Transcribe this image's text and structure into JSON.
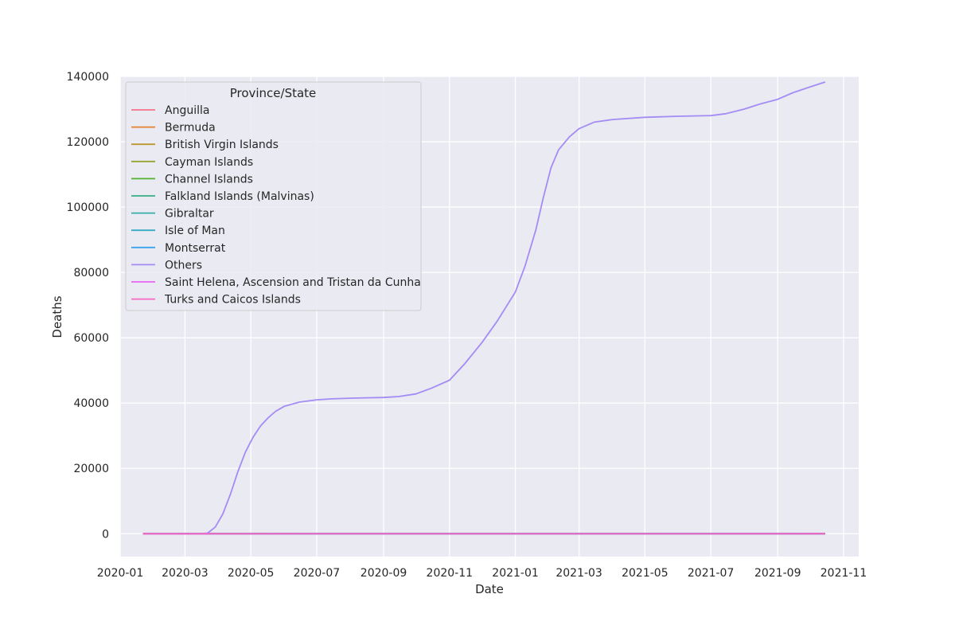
{
  "chart_data": {
    "type": "line",
    "title": "",
    "xlabel": "Date",
    "ylabel": "Deaths",
    "xlim": [
      "2020-01-01",
      "2021-11-15"
    ],
    "ylim": [
      -7000,
      140000
    ],
    "x_ticks": [
      "2020-01",
      "2020-03",
      "2020-05",
      "2020-07",
      "2020-09",
      "2020-11",
      "2021-01",
      "2021-03",
      "2021-05",
      "2021-07",
      "2021-09",
      "2021-11"
    ],
    "y_ticks": [
      0,
      20000,
      40000,
      60000,
      80000,
      100000,
      120000,
      140000
    ],
    "grid": true,
    "background": "#eaeaf2",
    "legend": {
      "title": "Province/State",
      "placement": "top-left"
    },
    "series": [
      {
        "name": "Anguilla",
        "color": "#f77189",
        "x": [
          "2020-01-22",
          "2021-10-15"
        ],
        "values": [
          0,
          0
        ]
      },
      {
        "name": "Bermuda",
        "color": "#e5802f",
        "x": [
          "2020-01-22",
          "2021-10-15"
        ],
        "values": [
          0,
          12
        ]
      },
      {
        "name": "British Virgin Islands",
        "color": "#bb9832",
        "x": [
          "2020-01-22",
          "2021-10-15"
        ],
        "values": [
          0,
          37
        ]
      },
      {
        "name": "Cayman Islands",
        "color": "#97a431",
        "x": [
          "2020-01-22",
          "2021-10-15"
        ],
        "values": [
          0,
          8
        ]
      },
      {
        "name": "Channel Islands",
        "color": "#50b131",
        "x": [
          "2020-01-22",
          "2021-10-15"
        ],
        "values": [
          0,
          100
        ]
      },
      {
        "name": "Falkland Islands (Malvinas)",
        "color": "#34af84",
        "x": [
          "2020-01-22",
          "2021-10-15"
        ],
        "values": [
          0,
          0
        ]
      },
      {
        "name": "Gibraltar",
        "color": "#36ada4",
        "x": [
          "2020-01-22",
          "2021-10-15"
        ],
        "values": [
          0,
          97
        ]
      },
      {
        "name": "Isle of Man",
        "color": "#38a9c5",
        "x": [
          "2020-01-22",
          "2021-10-15"
        ],
        "values": [
          0,
          50
        ]
      },
      {
        "name": "Montserrat",
        "color": "#3ba3ec",
        "x": [
          "2020-01-22",
          "2021-10-15"
        ],
        "values": [
          0,
          1
        ]
      },
      {
        "name": "Others",
        "color": "#a48cf4",
        "x": [
          "2020-01-22",
          "2020-03-15",
          "2020-03-22",
          "2020-03-29",
          "2020-04-05",
          "2020-04-12",
          "2020-04-19",
          "2020-04-26",
          "2020-05-03",
          "2020-05-10",
          "2020-05-17",
          "2020-05-24",
          "2020-06-01",
          "2020-06-15",
          "2020-07-01",
          "2020-07-15",
          "2020-08-01",
          "2020-08-15",
          "2020-09-01",
          "2020-09-15",
          "2020-10-01",
          "2020-10-15",
          "2020-11-01",
          "2020-11-15",
          "2020-12-01",
          "2020-12-15",
          "2021-01-01",
          "2021-01-10",
          "2021-01-20",
          "2021-01-27",
          "2021-02-03",
          "2021-02-10",
          "2021-02-20",
          "2021-03-01",
          "2021-03-15",
          "2021-04-01",
          "2021-05-01",
          "2021-06-01",
          "2021-07-01",
          "2021-07-15",
          "2021-08-01",
          "2021-08-15",
          "2021-09-01",
          "2021-09-15",
          "2021-10-01",
          "2021-10-15"
        ],
        "values": [
          0,
          0,
          200,
          2000,
          6000,
          12000,
          19000,
          25000,
          29500,
          33000,
          35500,
          37500,
          39000,
          40300,
          41000,
          41300,
          41500,
          41600,
          41700,
          42000,
          42800,
          44500,
          47000,
          52000,
          58500,
          65000,
          74000,
          82000,
          93000,
          103000,
          112000,
          117500,
          121500,
          124000,
          126000,
          126800,
          127500,
          127800,
          128000,
          128600,
          130000,
          131500,
          133000,
          135000,
          136800,
          138300
        ]
      },
      {
        "name": "Saint Helena, Ascension and Tristan da Cunha",
        "color": "#e866f4",
        "x": [
          "2020-01-22",
          "2021-10-15"
        ],
        "values": [
          0,
          0
        ]
      },
      {
        "name": "Turks and Caicos Islands",
        "color": "#f668c2",
        "x": [
          "2020-01-22",
          "2021-10-15"
        ],
        "values": [
          0,
          23
        ]
      }
    ]
  }
}
